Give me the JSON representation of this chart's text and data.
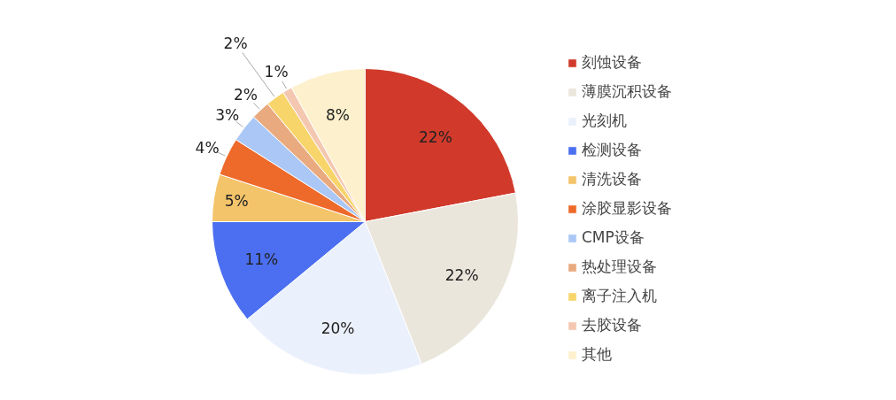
{
  "chart_data": {
    "type": "pie",
    "categories": [
      "刻蚀设备",
      "薄膜沉积设备",
      "光刻机",
      "检测设备",
      "清洗设备",
      "涂胶显影设备",
      "CMP设备",
      "热处理设备",
      "离子注入机",
      "去胶设备",
      "其他"
    ],
    "values": [
      22,
      22,
      20,
      11,
      5,
      4,
      3,
      2,
      2,
      1,
      8
    ],
    "value_labels": [
      "22%",
      "22%",
      "20%",
      "11%",
      "5%",
      "4%",
      "3%",
      "2%",
      "2%",
      "1%",
      "8%"
    ],
    "colors": [
      "#d13a2b",
      "#ebe6dc",
      "#ebf1fc",
      "#4b6ff0",
      "#f4c46b",
      "#ee6a2b",
      "#aac7f6",
      "#e9aa7f",
      "#f8d56b",
      "#f4c7b1",
      "#fdf0cc"
    ],
    "legend": "right"
  }
}
